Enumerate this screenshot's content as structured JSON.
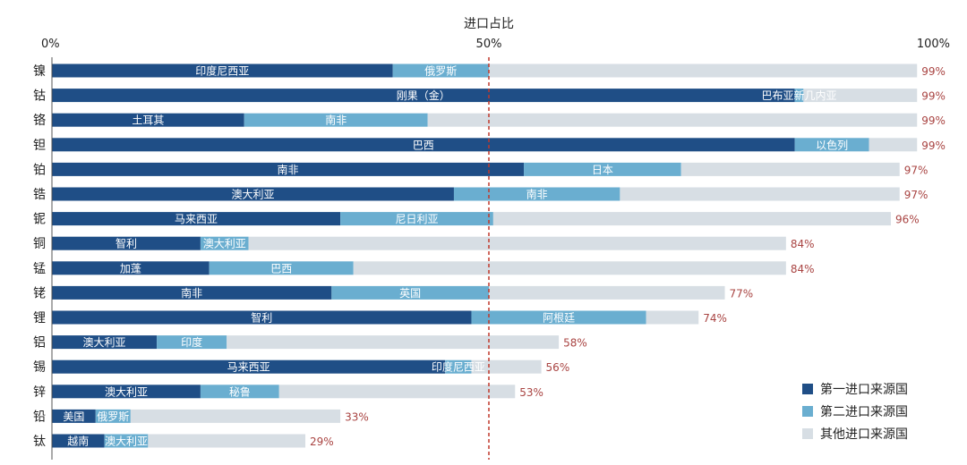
{
  "chart_data": {
    "type": "bar",
    "orientation": "horizontal",
    "stacked": true,
    "title": "进口占比",
    "xlabel": "进口占比",
    "ylabel": "",
    "xlim": [
      0,
      100
    ],
    "x_ticks": [
      "0%",
      "50%",
      "100%"
    ],
    "reference_line": {
      "value": 50,
      "style": "dashed",
      "color": "#c0392b"
    },
    "grid": false,
    "legend_position": "bottom-right",
    "categories": [
      "镍",
      "钴",
      "铬",
      "钽",
      "铂",
      "锆",
      "铌",
      "铜",
      "锰",
      "铑",
      "锂",
      "铝",
      "锡",
      "锌",
      "铅",
      "钛"
    ],
    "series": [
      {
        "name": "第一进口来源国",
        "color": "#1f4e86",
        "values": [
          39,
          85,
          22,
          85,
          54,
          46,
          33,
          17,
          18,
          32,
          48,
          12,
          45,
          17,
          5,
          6
        ],
        "labels": [
          "印度尼西亚",
          "刚果（金）",
          "土耳其",
          "巴西",
          "南非",
          "澳大利亚",
          "马来西亚",
          "智利",
          "加蓬",
          "南非",
          "智利",
          "澳大利亚",
          "马来西亚",
          "澳大利亚",
          "美国",
          "越南"
        ]
      },
      {
        "name": "第二进口来源国",
        "color": "#6aaed0",
        "values": [
          11,
          1,
          21,
          8.5,
          18,
          19,
          17.5,
          5.5,
          16.5,
          18,
          20,
          8,
          3,
          9,
          4,
          5
        ],
        "labels": [
          "俄罗斯",
          "巴布亚新几内亚",
          "南非",
          "以色列",
          "日本",
          "南非",
          "尼日利亚",
          "澳大利亚",
          "巴西",
          "英国",
          "阿根廷",
          "印度",
          "印度尼西亚",
          "秘鲁",
          "俄罗斯",
          "澳大利亚"
        ]
      },
      {
        "name": "其他进口来源国",
        "color": "#d7dee4",
        "values": [
          49,
          13,
          56,
          5.5,
          25,
          32,
          45.5,
          61.5,
          49.5,
          27,
          6,
          38,
          8,
          27,
          24,
          18
        ]
      }
    ],
    "totals": [
      99,
      99,
      99,
      99,
      97,
      97,
      96,
      84,
      84,
      77,
      74,
      58,
      56,
      53,
      33,
      29
    ],
    "total_labels": [
      "99%",
      "99%",
      "99%",
      "99%",
      "97%",
      "97%",
      "96%",
      "84%",
      "84%",
      "77%",
      "74%",
      "58%",
      "56%",
      "53%",
      "33%",
      "29%"
    ],
    "total_label_color": "#a94442"
  }
}
